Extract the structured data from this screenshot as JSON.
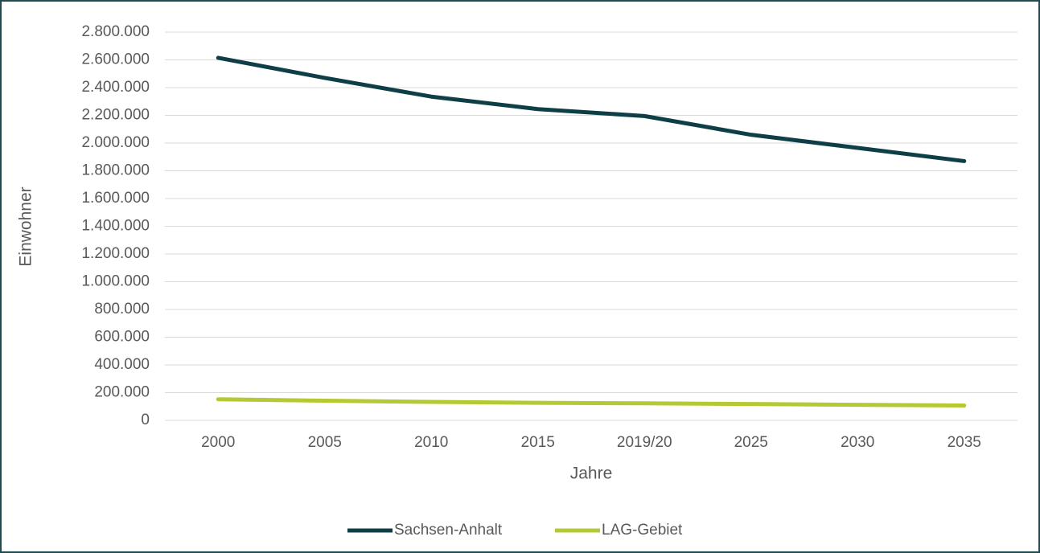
{
  "chart_data": {
    "type": "line",
    "x_label": "Jahre",
    "y_label": "Einwohner",
    "categories": [
      "2000",
      "2005",
      "2010",
      "2015",
      "2019/20",
      "2025",
      "2030",
      "2035"
    ],
    "series": [
      {
        "name": "Sachsen-Anhalt",
        "color": "#0e3e46",
        "values": [
          2615000,
          2470000,
          2335000,
          2245000,
          2195000,
          2060000,
          1965000,
          1870000
        ]
      },
      {
        "name": "LAG-Gebiet",
        "color": "#b4c934",
        "values": [
          152000,
          142000,
          133000,
          127000,
          123000,
          118000,
          112000,
          107000
        ]
      }
    ],
    "ylim": [
      0,
      2800000
    ],
    "yticks": [
      0,
      {
        "value": 200000,
        "label": "200.000"
      },
      {
        "value": 400000,
        "label": "400.000"
      },
      {
        "value": 600000,
        "label": "600.000"
      },
      {
        "value": 800000,
        "label": "800.000"
      },
      {
        "value": 1000000,
        "label": "1.000.000"
      },
      {
        "value": 1200000,
        "label": "1.200.000"
      },
      {
        "value": 1400000,
        "label": "1.400.000"
      },
      {
        "value": 1600000,
        "label": "1.600.000"
      },
      {
        "value": 1800000,
        "label": "1.800.000"
      },
      {
        "value": 2000000,
        "label": "2.000.000"
      },
      {
        "value": 2200000,
        "label": "2.200.000"
      },
      {
        "value": 2400000,
        "label": "2.400.000"
      },
      {
        "value": 2600000,
        "label": "2.600.000"
      },
      {
        "value": 2800000,
        "label": "2.800.000"
      }
    ],
    "grid": true,
    "legend": "bottom"
  }
}
